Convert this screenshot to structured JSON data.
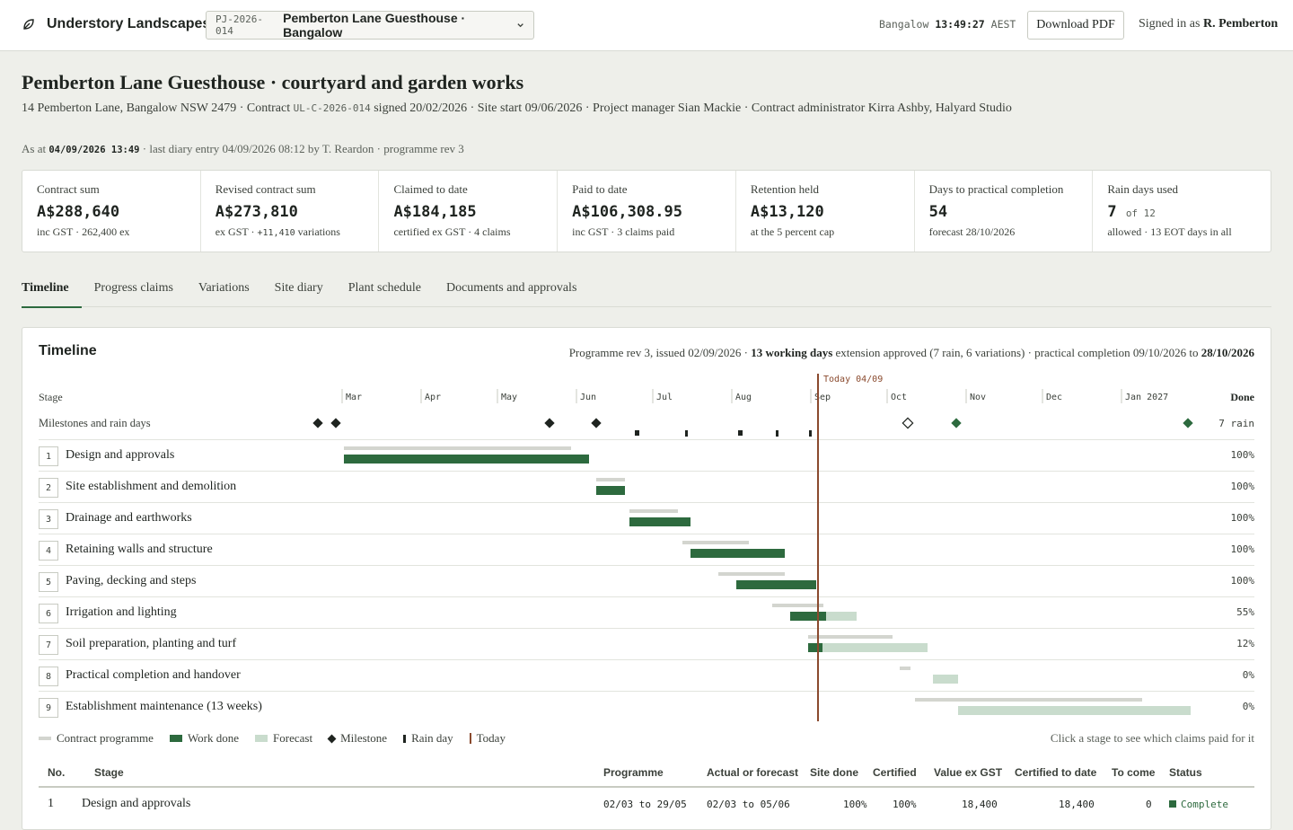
{
  "topbar": {
    "brand": "Understory Landscapes",
    "project_code": "PJ-2026-014",
    "project_name": "Pemberton Lane Guesthouse · Bangalow",
    "clock_place": "Bangalow",
    "clock_time": "13:49:27",
    "clock_tz": "AEST",
    "download_label": "Download PDF",
    "signed_prefix": "Signed in as",
    "signed_user": "R. Pemberton"
  },
  "header": {
    "title": "Pemberton Lane Guesthouse · courtyard and garden works",
    "address_prefix": "14 Pemberton Lane, Bangalow NSW 2479 · Contract",
    "contract_code": "UL-C-2026-014",
    "subline_rest": "signed 20/02/2026 · Site start 09/06/2026 · Project manager Sian Mackie · Contract administrator Kirra Ashby, Halyard Studio",
    "asat_prefix": "As at",
    "asat_stamp": "04/09/2026 13:49",
    "asat_rest": "· last diary entry 04/09/2026 08:12 by T. Reardon · programme rev 3"
  },
  "kpis": [
    {
      "label": "Contract sum",
      "value": "A$288,640",
      "unit": "",
      "note": "inc GST · 262,400 ex",
      "note_mono": ""
    },
    {
      "label": "Revised contract sum",
      "value": "A$273,810",
      "unit": "",
      "note_pre": "ex GST ·",
      "note_mono": "+11,410",
      "note": "variations"
    },
    {
      "label": "Claimed to date",
      "value": "A$184,185",
      "unit": "",
      "note": "certified ex GST · 4 claims",
      "note_mono": ""
    },
    {
      "label": "Paid to date",
      "value": "A$106,308.95",
      "unit": "",
      "note": "inc GST · 3 claims paid",
      "note_mono": ""
    },
    {
      "label": "Retention held",
      "value": "A$13,120",
      "unit": "",
      "note": "at the 5 percent cap",
      "note_mono": ""
    },
    {
      "label": "Days to practical completion",
      "value": "54",
      "unit": "",
      "note": "forecast 28/10/2026",
      "note_mono": ""
    },
    {
      "label": "Rain days used",
      "value": "7",
      "unit": "of 12",
      "note": "allowed · 13 EOT days in all",
      "note_mono": ""
    }
  ],
  "tabs": [
    "Timeline",
    "Progress claims",
    "Variations",
    "Site diary",
    "Plant schedule",
    "Documents and approvals"
  ],
  "timeline": {
    "title": "Timeline",
    "meta_pre": "Programme rev 3, issued 02/09/2026 ·",
    "meta_bold": "13 working days",
    "meta_mid": "extension approved (7 rain, 6 variations) · practical completion 09/10/2026 to",
    "meta_end": "28/10/2026",
    "stage_head": "Stage",
    "done_head": "Done",
    "milestones_label": "Milestones and rain days",
    "rain_count": "7 rain",
    "today_label": "Today 04/09",
    "months": [
      "Mar",
      "Apr",
      "May",
      "Jun",
      "Jul",
      "Aug",
      "Sep",
      "Oct",
      "Nov",
      "Dec",
      "Jan 2027"
    ],
    "stages": [
      {
        "no": "1",
        "name": "Design and approvals",
        "done": "100%"
      },
      {
        "no": "2",
        "name": "Site establishment and demolition",
        "done": "100%"
      },
      {
        "no": "3",
        "name": "Drainage and earthworks",
        "done": "100%"
      },
      {
        "no": "4",
        "name": "Retaining walls and structure",
        "done": "100%"
      },
      {
        "no": "5",
        "name": "Paving, decking and steps",
        "done": "100%"
      },
      {
        "no": "6",
        "name": "Irrigation and lighting",
        "done": "55%"
      },
      {
        "no": "7",
        "name": "Soil preparation, planting and turf",
        "done": "12%"
      },
      {
        "no": "8",
        "name": "Practical completion and handover",
        "done": "0%"
      },
      {
        "no": "9",
        "name": "Establishment maintenance (13 weeks)",
        "done": "0%"
      }
    ],
    "legend": [
      "Contract programme",
      "Work done",
      "Forecast",
      "Milestone",
      "Rain day",
      "Today"
    ],
    "hint": "Click a stage to see which claims paid for it"
  },
  "table": {
    "headers": [
      "No.",
      "Stage",
      "Programme",
      "Actual or forecast",
      "Site done",
      "Certified",
      "Value ex GST",
      "Certified to date",
      "To come",
      "Status"
    ],
    "rows": [
      [
        "1",
        "Design and approvals",
        "02/03 to 29/05",
        "02/03 to 05/06",
        "100%",
        "100%",
        "18,400",
        "18,400",
        "0",
        "Complete"
      ]
    ]
  },
  "colors": {
    "done": "#2d6a3e",
    "forecast": "#c9dccd",
    "programme": "#d3d5cf",
    "today": "#8a4a2e"
  }
}
